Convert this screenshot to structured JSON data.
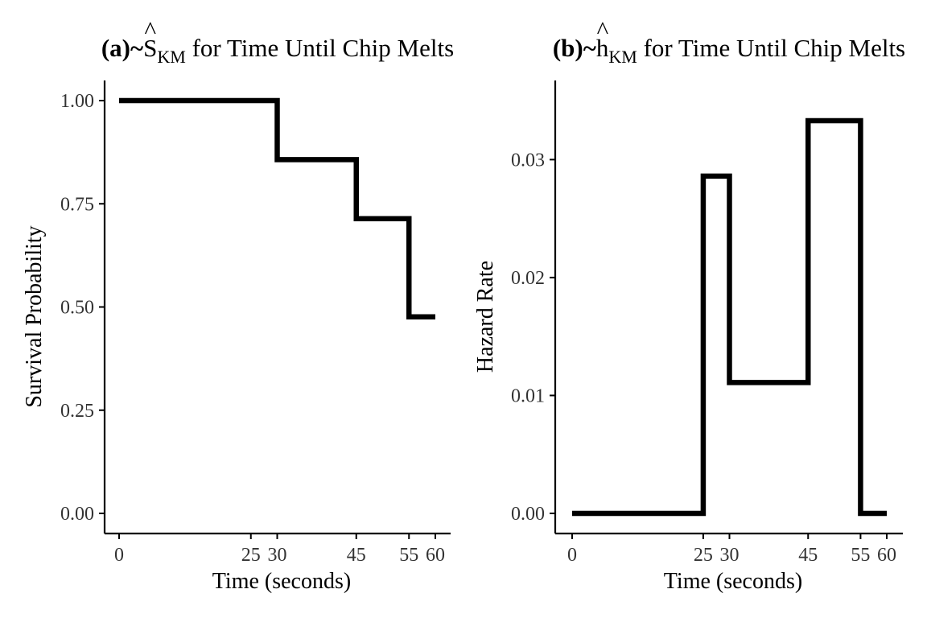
{
  "chart_data": [
    {
      "type": "line",
      "style": "step",
      "panel": "(a)",
      "title": "(a)~Ŝ_KM for Time Until Chip Melts",
      "title_parts": {
        "bold_prefix": "(a)~",
        "symbol": "S",
        "hat": "^",
        "subscript": "KM",
        "rest": " for Time Until Chip Melts"
      },
      "xlabel": "Time (seconds)",
      "ylabel": "Survival Probability",
      "xlim": [
        -1,
        60
      ],
      "ylim": [
        0,
        1
      ],
      "xticks": [
        0,
        25,
        30,
        45,
        55,
        60
      ],
      "xtick_labels": [
        "0",
        "25",
        "30",
        "45",
        "55",
        "60"
      ],
      "yticks": [
        0,
        0.25,
        0.5,
        0.75,
        1
      ],
      "ytick_labels": [
        "0.00",
        "0.25",
        "0.50",
        "0.75",
        "1.00"
      ],
      "series": [
        {
          "x": [
            0,
            30,
            45,
            55,
            60
          ],
          "y": [
            1.0,
            0.857,
            0.714,
            0.476,
            0.476
          ]
        }
      ],
      "grid": false,
      "color": "#000000"
    },
    {
      "type": "line",
      "style": "step",
      "panel": "(b)",
      "title": "(b)~ĥ_KM for Time Until Chip Melts",
      "title_parts": {
        "bold_prefix": "(b)~",
        "symbol": "h",
        "hat": "^",
        "subscript": "KM",
        "rest": " for Time Until Chip Melts"
      },
      "xlabel": "Time (seconds)",
      "ylabel": "Hazard Rate",
      "xlim": [
        -1,
        60
      ],
      "ylim": [
        0,
        0.0333
      ],
      "xticks": [
        0,
        25,
        30,
        45,
        55,
        60
      ],
      "xtick_labels": [
        "0",
        "25",
        "30",
        "45",
        "55",
        "60"
      ],
      "yticks": [
        0,
        0.01,
        0.02,
        0.03
      ],
      "ytick_labels": [
        "0.00",
        "0.01",
        "0.02",
        "0.03"
      ],
      "series": [
        {
          "x": [
            0,
            25,
            30,
            45,
            55,
            60
          ],
          "y": [
            0,
            0.0286,
            0.0111,
            0.0333,
            0,
            0
          ]
        }
      ],
      "grid": false,
      "color": "#000000"
    }
  ]
}
